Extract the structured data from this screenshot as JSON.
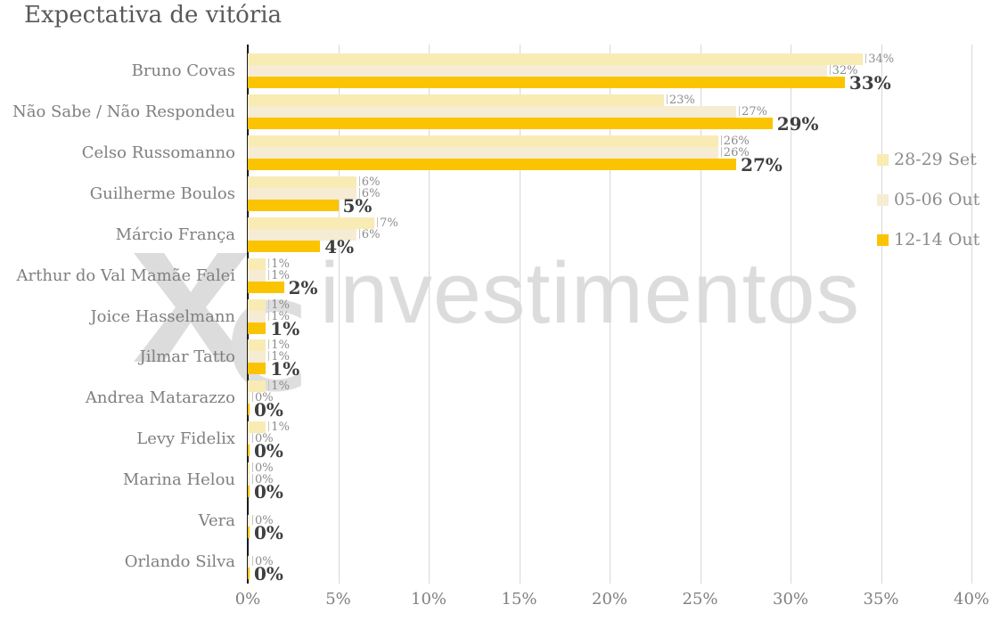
{
  "title": "Expectativa de vitória",
  "watermark": {
    "logo": "xc",
    "text": "investimentos"
  },
  "colors": {
    "series_28_29_set": "#f8ebb4",
    "series_05_06_out": "#f5ecd3",
    "series_12_14_out": "#fbc402",
    "gridline": "#d8d8d8",
    "axis_line": "#1a1a1a",
    "title_text": "#595959",
    "category_text": "#7f7f7f",
    "small_label_text": "#8c8c8c",
    "bold_label_text": "#3f3f3f",
    "watermark": "#dcdcdc"
  },
  "chart_data": {
    "type": "bar",
    "orientation": "horizontal",
    "title": "Expectativa de vitória",
    "categories": [
      "Bruno Covas",
      "Não Sabe / Não Respondeu",
      "Celso Russomanno",
      "Guilherme Boulos",
      "Márcio França",
      "Arthur do Val Mamãe Falei",
      "Joice Hasselmann",
      "Jilmar Tatto",
      "Andrea Matarazzo",
      "Levy Fidelix",
      "Marina Helou",
      "Vera",
      "Orlando Silva"
    ],
    "series": [
      {
        "name": "28-29 Set",
        "color": "#f8ebb4",
        "values": [
          34,
          23,
          26,
          6,
          7,
          1,
          1,
          1,
          1,
          1,
          0,
          null,
          null
        ]
      },
      {
        "name": "05-06 Out",
        "color": "#f5ecd3",
        "values": [
          32,
          27,
          26,
          6,
          6,
          1,
          1,
          1,
          0,
          0,
          0,
          0,
          0
        ]
      },
      {
        "name": "12-14 Out",
        "color": "#fbc402",
        "values": [
          33,
          29,
          27,
          5,
          4,
          2,
          1,
          1,
          0,
          0,
          0,
          0,
          0
        ]
      }
    ],
    "value_suffix": "%",
    "xlim": [
      0,
      40
    ],
    "x_ticks": [
      "0%",
      "5%",
      "10%",
      "15%",
      "20%",
      "25%",
      "30%",
      "35%",
      "40%"
    ],
    "grid": true,
    "legend_position": "right"
  }
}
